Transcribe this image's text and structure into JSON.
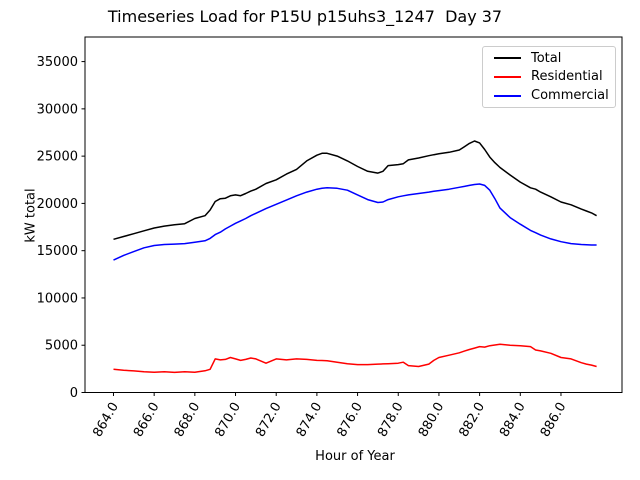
{
  "title": "Timeseries Load for P15U p15uhs3_1247  Day 37",
  "chart_data": {
    "type": "line",
    "title": "Timeseries Load for P15U p15uhs3_1247  Day 37",
    "xlabel": "Hour of Year",
    "ylabel": "kW total",
    "xlim": [
      862.6,
      889.0
    ],
    "ylim": [
      0,
      37600
    ],
    "grid": false,
    "legend_position": "upper right",
    "xticks": [
      864,
      866,
      868,
      870,
      872,
      874,
      876,
      878,
      880,
      882,
      884,
      886
    ],
    "xtick_labels": [
      "864.0",
      "866.0",
      "868.0",
      "870.0",
      "872.0",
      "874.0",
      "876.0",
      "878.0",
      "880.0",
      "882.0",
      "884.0",
      "886.0"
    ],
    "xtick_rotation_deg": 60,
    "yticks": [
      0,
      5000,
      10000,
      15000,
      20000,
      25000,
      30000,
      35000
    ],
    "ytick_labels": [
      "0",
      "5000",
      "10000",
      "15000",
      "20000",
      "25000",
      "30000",
      "35000"
    ],
    "x": [
      864,
      864.5,
      865,
      865.5,
      866,
      866.5,
      867,
      867.5,
      868,
      868.5,
      868.75,
      869,
      869.25,
      869.5,
      869.75,
      870,
      870.25,
      870.5,
      870.75,
      871,
      871.5,
      872,
      872.5,
      873,
      873.5,
      874,
      874.25,
      874.5,
      875,
      875.5,
      876,
      876.5,
      877,
      877.25,
      877.5,
      878,
      878.25,
      878.5,
      879,
      879.5,
      879.75,
      880,
      880.5,
      881,
      881.25,
      881.5,
      881.75,
      882,
      882.25,
      882.5,
      882.75,
      883,
      883.5,
      884,
      884.5,
      884.75,
      885,
      885.5,
      886,
      886.5,
      887,
      887.25,
      887.5,
      887.75
    ],
    "series": [
      {
        "name": "Total",
        "color": "#000000",
        "values": [
          16200,
          16500,
          16800,
          17100,
          17400,
          17600,
          17750,
          17850,
          18400,
          18700,
          19300,
          20200,
          20500,
          20550,
          20800,
          20900,
          20820,
          21050,
          21300,
          21500,
          22100,
          22500,
          23100,
          23600,
          24500,
          25100,
          25300,
          25300,
          25000,
          24500,
          23900,
          23400,
          23200,
          23400,
          24000,
          24100,
          24200,
          24600,
          24800,
          25050,
          25150,
          25250,
          25400,
          25650,
          26000,
          26350,
          26600,
          26400,
          25700,
          24900,
          24300,
          23800,
          23000,
          22250,
          21650,
          21500,
          21200,
          20700,
          20150,
          19850,
          19400,
          19200,
          19000,
          18700
        ]
      },
      {
        "name": "Residential",
        "color": "#ff0000",
        "values": [
          2450,
          2350,
          2280,
          2200,
          2150,
          2200,
          2130,
          2200,
          2150,
          2300,
          2450,
          3550,
          3450,
          3500,
          3700,
          3550,
          3400,
          3500,
          3650,
          3550,
          3100,
          3550,
          3450,
          3550,
          3500,
          3400,
          3380,
          3350,
          3200,
          3050,
          2950,
          2950,
          3000,
          3020,
          3050,
          3100,
          3200,
          2850,
          2750,
          3000,
          3400,
          3700,
          3950,
          4200,
          4380,
          4550,
          4700,
          4850,
          4800,
          4950,
          5020,
          5100,
          5000,
          4950,
          4850,
          4500,
          4400,
          4150,
          3700,
          3550,
          3150,
          3000,
          2900,
          2750
        ]
      },
      {
        "name": "Commercial",
        "color": "#0000ff",
        "values": [
          14000,
          14500,
          14900,
          15300,
          15550,
          15650,
          15700,
          15750,
          15900,
          16050,
          16300,
          16700,
          16950,
          17300,
          17600,
          17900,
          18150,
          18400,
          18700,
          18950,
          19450,
          19900,
          20350,
          20800,
          21200,
          21500,
          21600,
          21650,
          21600,
          21400,
          20900,
          20400,
          20100,
          20150,
          20400,
          20700,
          20800,
          20900,
          21050,
          21200,
          21280,
          21350,
          21500,
          21700,
          21800,
          21900,
          22000,
          22050,
          21900,
          21400,
          20500,
          19500,
          18500,
          17800,
          17150,
          16900,
          16650,
          16250,
          15950,
          15750,
          15650,
          15620,
          15600,
          15600
        ]
      }
    ]
  },
  "legend": {
    "items": [
      {
        "label": "Total",
        "color": "#000000"
      },
      {
        "label": "Residential",
        "color": "#ff0000"
      },
      {
        "label": "Commercial",
        "color": "#0000ff"
      }
    ]
  }
}
